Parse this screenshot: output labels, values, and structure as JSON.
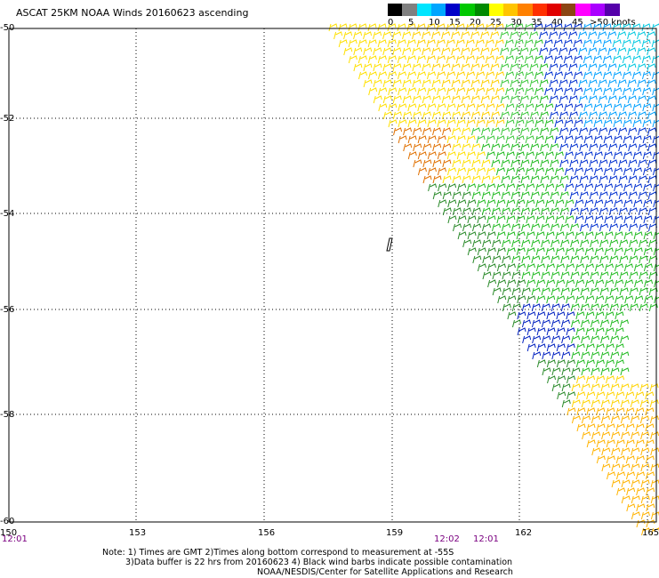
{
  "title": "ASCAT 25KM NOAA Winds 20160623 ascending",
  "legend": {
    "colors": [
      "#000000",
      "#808080",
      "#00e5ff",
      "#00a6ff",
      "#0000c8",
      "#00c800",
      "#008a00",
      "#ffff00",
      "#ffc400",
      "#ff8000",
      "#ff3000",
      "#e00000",
      "#8b4513",
      "#ff00ff",
      "#aa00ff",
      "#5500aa"
    ],
    "labels": [
      "0",
      "5",
      "10",
      "15",
      "20",
      "25",
      "30",
      "35",
      "40",
      "45",
      ">50 knots"
    ]
  },
  "axes": {
    "lat_labels": [
      "-50",
      "-52",
      "-54",
      "-56",
      "-58",
      "-60"
    ],
    "lon_labels": [
      "150",
      "153",
      "156",
      "159",
      "162",
      "165"
    ]
  },
  "times": [
    "12:01",
    "12:02",
    "12:01"
  ],
  "notes": [
    "Note: 1) Times are GMT 2)Times along bottom correspond to measurement at -55S",
    "3)Data buffer is 22 hrs from 20160623 4) Black wind barbs indicate possible contamination",
    "NOAA/NESDIS/Center for Satellite Applications and Research"
  ]
}
